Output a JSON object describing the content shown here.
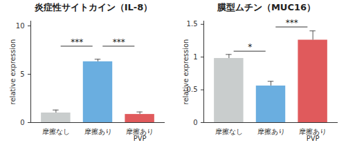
{
  "chart_data": [
    {
      "type": "bar",
      "title": "炎症性サイトカイン（IL-8）",
      "categories": [
        "摩擦なし",
        "摩擦あり",
        "摩擦あり\nPVP"
      ],
      "values": [
        1.0,
        6.3,
        0.85
      ],
      "errors": [
        0.3,
        0.25,
        0.25
      ],
      "colors": [
        "#c9cdcd",
        "#6aaee0",
        "#e05a5c"
      ],
      "y_label": "relative expression",
      "ylim": [
        0,
        10.5
      ],
      "yticks": [
        0,
        5,
        10
      ],
      "annotations": [
        {
          "text": "***",
          "from": "摩擦なし",
          "to": "摩擦あり",
          "y": 7.9
        },
        {
          "text": "***",
          "from": "摩擦あり",
          "to": "摩擦あり\nPVP",
          "y": 7.9
        }
      ]
    },
    {
      "type": "bar",
      "title": "膜型ムチン（MUC16）",
      "categories": [
        "摩擦なし",
        "摩擦あり",
        "摩擦あり\nPVP"
      ],
      "values": [
        0.98,
        0.56,
        1.26
      ],
      "errors": [
        0.06,
        0.07,
        0.14
      ],
      "colors": [
        "#c9cdcd",
        "#6aaee0",
        "#e05a5c"
      ],
      "y_label": "relative expression",
      "ylim": [
        0,
        1.55
      ],
      "yticks": [
        0,
        0.5,
        1,
        1.5
      ],
      "annotations": [
        {
          "text": "*",
          "from": "摩擦なし",
          "to": "摩擦あり",
          "y": 1.09
        },
        {
          "text": "***",
          "from": "摩擦あり",
          "to": "摩擦あり\nPVP",
          "y": 1.46
        }
      ]
    }
  ]
}
